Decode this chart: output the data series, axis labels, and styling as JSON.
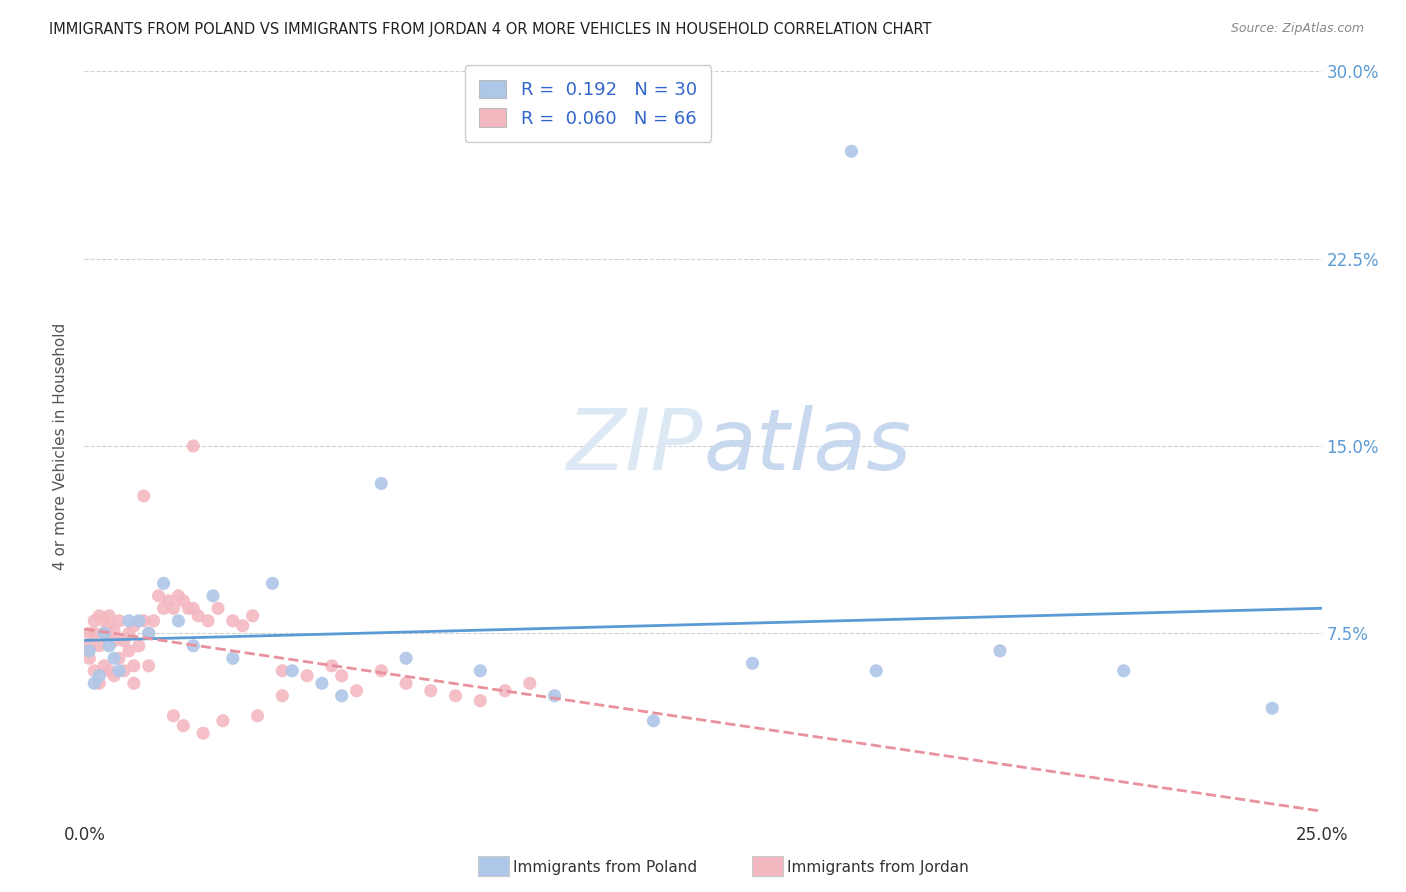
{
  "title": "IMMIGRANTS FROM POLAND VS IMMIGRANTS FROM JORDAN 4 OR MORE VEHICLES IN HOUSEHOLD CORRELATION CHART",
  "source": "Source: ZipAtlas.com",
  "ylabel": "4 or more Vehicles in Household",
  "xlim": [
    0.0,
    0.25
  ],
  "ylim": [
    0.0,
    0.3
  ],
  "poland_R": 0.192,
  "poland_N": 30,
  "jordan_R": 0.06,
  "jordan_N": 66,
  "poland_color": "#aec6e8",
  "jordan_color": "#f4b8c1",
  "poland_line_color": "#5b9bd5",
  "jordan_line_color": "#e8929e",
  "background_color": "#ffffff",
  "poland_x": [
    0.001,
    0.002,
    0.003,
    0.004,
    0.005,
    0.006,
    0.007,
    0.009,
    0.011,
    0.013,
    0.016,
    0.019,
    0.022,
    0.026,
    0.03,
    0.038,
    0.042,
    0.048,
    0.052,
    0.06,
    0.065,
    0.08,
    0.095,
    0.115,
    0.135,
    0.155,
    0.16,
    0.185,
    0.21,
    0.24
  ],
  "poland_y": [
    0.068,
    0.055,
    0.058,
    0.075,
    0.07,
    0.065,
    0.06,
    0.08,
    0.08,
    0.075,
    0.095,
    0.08,
    0.07,
    0.09,
    0.065,
    0.095,
    0.06,
    0.055,
    0.05,
    0.135,
    0.065,
    0.06,
    0.05,
    0.04,
    0.063,
    0.268,
    0.06,
    0.068,
    0.06,
    0.045
  ],
  "jordan_x": [
    0.001,
    0.001,
    0.001,
    0.002,
    0.002,
    0.002,
    0.003,
    0.003,
    0.003,
    0.004,
    0.004,
    0.004,
    0.005,
    0.005,
    0.005,
    0.006,
    0.006,
    0.006,
    0.007,
    0.007,
    0.008,
    0.008,
    0.009,
    0.009,
    0.01,
    0.01,
    0.011,
    0.012,
    0.013,
    0.014,
    0.015,
    0.016,
    0.017,
    0.018,
    0.019,
    0.02,
    0.021,
    0.022,
    0.023,
    0.025,
    0.027,
    0.03,
    0.032,
    0.034,
    0.04,
    0.04,
    0.045,
    0.05,
    0.052,
    0.06,
    0.022,
    0.012,
    0.035,
    0.055,
    0.065,
    0.07,
    0.075,
    0.08,
    0.085,
    0.09,
    0.01,
    0.013,
    0.018,
    0.02,
    0.024,
    0.028
  ],
  "jordan_y": [
    0.065,
    0.07,
    0.075,
    0.06,
    0.075,
    0.08,
    0.055,
    0.07,
    0.082,
    0.062,
    0.075,
    0.08,
    0.06,
    0.078,
    0.082,
    0.058,
    0.072,
    0.076,
    0.065,
    0.08,
    0.06,
    0.072,
    0.068,
    0.075,
    0.062,
    0.078,
    0.07,
    0.08,
    0.075,
    0.08,
    0.09,
    0.085,
    0.088,
    0.085,
    0.09,
    0.088,
    0.085,
    0.15,
    0.082,
    0.08,
    0.085,
    0.08,
    0.078,
    0.082,
    0.06,
    0.05,
    0.058,
    0.062,
    0.058,
    0.06,
    0.085,
    0.13,
    0.042,
    0.052,
    0.055,
    0.052,
    0.05,
    0.048,
    0.052,
    0.055,
    0.055,
    0.062,
    0.042,
    0.038,
    0.035,
    0.04
  ]
}
